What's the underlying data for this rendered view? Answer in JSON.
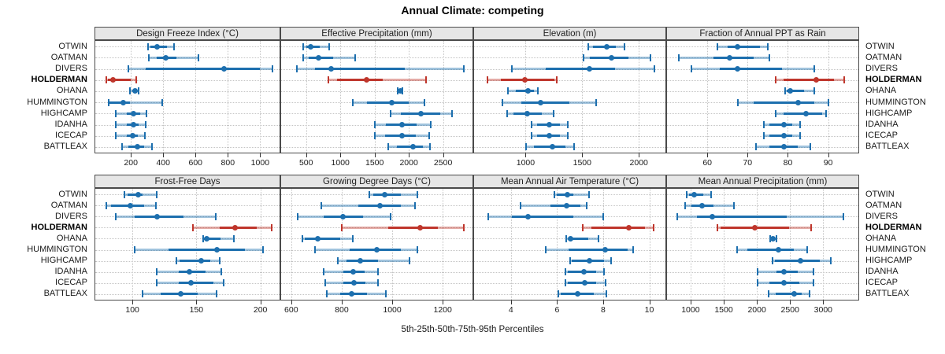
{
  "title": "Annual Climate: competing",
  "caption": "5th-25th-50th-75th-95th Percentiles",
  "colors": {
    "normal": "#1d6fae",
    "highlight": "#bf362c",
    "grid": "#c4c4c4",
    "strip_bg": "#e6e6e6",
    "panel_border": "#4a4a4a"
  },
  "chart_data": {
    "type": "dotplot-percentile-intervals",
    "percentiles": [
      5,
      25,
      50,
      75,
      95
    ],
    "legend_note": "dot = 50th percentile, thick solid = 25th-75th, light band with end caps = 5th-95th",
    "stations": [
      "OTWIN",
      "OATMAN",
      "DIVERS",
      "HOLDERMAN",
      "OHANA",
      "HUMMINGTON",
      "HIGHCAMP",
      "IDANHA",
      "ICECAP",
      "BATTLEAX"
    ],
    "highlight_station": "HOLDERMAN",
    "panels": [
      {
        "label": "Design Freeze Index (°C)",
        "row": 0,
        "col": 0,
        "xlim": [
          -20,
          1120
        ],
        "ticks": [
          200,
          400,
          600,
          800,
          1000
        ],
        "series": [
          [
            305,
            320,
            360,
            425,
            465
          ],
          [
            312,
            360,
            417,
            480,
            618
          ],
          [
            185,
            290,
            775,
            1000,
            1075
          ],
          [
            48,
            60,
            90,
            200,
            232
          ],
          [
            195,
            210,
            225,
            240,
            250
          ],
          [
            65,
            70,
            152,
            192,
            395
          ],
          [
            105,
            176,
            216,
            256,
            296
          ],
          [
            105,
            175,
            215,
            250,
            290
          ],
          [
            105,
            175,
            213,
            245,
            285
          ],
          [
            145,
            185,
            240,
            280,
            330
          ]
        ]
      },
      {
        "label": "Effective Precipitation (mm)",
        "row": 0,
        "col": 1,
        "xlim": [
          135,
          2930
        ],
        "ticks": [
          500,
          1000,
          1500,
          2000,
          2500
        ],
        "series": [
          [
            455,
            500,
            570,
            700,
            840
          ],
          [
            455,
            535,
            680,
            900,
            1220
          ],
          [
            365,
            630,
            865,
            1940,
            2800
          ],
          [
            820,
            950,
            1380,
            1620,
            2250
          ],
          [
            1840,
            1855,
            1875,
            1895,
            1910
          ],
          [
            1180,
            1390,
            1750,
            2000,
            2230
          ],
          [
            1730,
            1885,
            2180,
            2460,
            2630
          ],
          [
            1500,
            1660,
            1905,
            2115,
            2325
          ],
          [
            1500,
            1650,
            1900,
            2100,
            2300
          ],
          [
            1695,
            1830,
            2060,
            2210,
            2305
          ]
        ]
      },
      {
        "label": "Elevation (m)",
        "row": 0,
        "col": 2,
        "xlim": [
          545,
          2235
        ],
        "ticks": [
          1000,
          1500,
          2000
        ],
        "series": [
          [
            1550,
            1595,
            1715,
            1800,
            1870
          ],
          [
            1515,
            1570,
            1760,
            1905,
            2100
          ],
          [
            880,
            1180,
            1565,
            1790,
            2135
          ],
          [
            665,
            780,
            995,
            1255,
            1275
          ],
          [
            845,
            915,
            1020,
            1075,
            1105
          ],
          [
            795,
            960,
            1135,
            1385,
            1625
          ],
          [
            840,
            890,
            1015,
            1145,
            1250
          ],
          [
            1050,
            1100,
            1210,
            1305,
            1375
          ],
          [
            1050,
            1100,
            1210,
            1300,
            1370
          ],
          [
            1005,
            1075,
            1235,
            1350,
            1430
          ]
        ]
      },
      {
        "label": "Fraction of Annual PPT as Rain",
        "row": 0,
        "col": 3,
        "xlim": [
          50,
          97.5
        ],
        "ticks": [
          60,
          70,
          80,
          90
        ],
        "series": [
          [
            62.5,
            65,
            67.5,
            73,
            75
          ],
          [
            53,
            61.5,
            65.5,
            71.5,
            75.5
          ],
          [
            56,
            63,
            67.5,
            78.5,
            86.5
          ],
          [
            77,
            79,
            87,
            91.5,
            94
          ],
          [
            79.3,
            79.8,
            80.5,
            84,
            86.5
          ],
          [
            67.5,
            71.5,
            82.5,
            86.5,
            90
          ],
          [
            77,
            79,
            84.5,
            88.5,
            89.5
          ],
          [
            74,
            75.5,
            79,
            81,
            83
          ],
          [
            74,
            75.5,
            79,
            81,
            83
          ],
          [
            72,
            75.5,
            79,
            82.5,
            85.5
          ]
        ]
      },
      {
        "label": "Frost-Free Days",
        "row": 1,
        "col": 0,
        "xlim": [
          71,
          215
        ],
        "ticks": [
          100,
          150,
          200
        ],
        "series": [
          [
            94,
            96,
            104.5,
            108,
            119
          ],
          [
            79.5,
            83,
            98.5,
            109,
            118.5
          ],
          [
            87,
            102,
            119,
            140,
            165
          ],
          [
            147,
            168,
            180,
            197,
            209
          ],
          [
            155,
            156,
            158,
            169,
            179.5
          ],
          [
            102,
            128,
            166,
            188,
            202
          ],
          [
            134.5,
            137,
            153.5,
            161,
            168.5
          ],
          [
            119,
            136,
            144.5,
            157,
            169.5
          ],
          [
            119,
            136,
            146,
            163,
            171
          ],
          [
            108,
            122,
            138,
            151,
            166
          ]
        ]
      },
      {
        "label": "Growing Degree Days (°C)",
        "row": 1,
        "col": 1,
        "xlim": [
          560,
          1318
        ],
        "ticks": [
          600,
          800,
          1000,
          1200
        ],
        "series": [
          [
            910,
            925,
            970,
            1035,
            1100
          ],
          [
            720,
            865,
            950,
            1035,
            1090
          ],
          [
            625,
            730,
            805,
            885,
            995
          ],
          [
            800,
            985,
            1110,
            1180,
            1285
          ],
          [
            645,
            655,
            705,
            795,
            845
          ],
          [
            695,
            830,
            940,
            1035,
            1100
          ],
          [
            785,
            820,
            875,
            945,
            1070
          ],
          [
            730,
            805,
            845,
            890,
            945
          ],
          [
            735,
            805,
            850,
            895,
            945
          ],
          [
            740,
            795,
            840,
            900,
            975
          ]
        ]
      },
      {
        "label": "Mean Annual Air Temperature (°C)",
        "row": 1,
        "col": 2,
        "xlim": [
          2.4,
          10.7
        ],
        "ticks": [
          4,
          6,
          8,
          10
        ],
        "series": [
          [
            5.9,
            6.0,
            6.45,
            6.7,
            7.4
          ],
          [
            4.4,
            5.7,
            6.4,
            7.0,
            7.3
          ],
          [
            3.0,
            4.05,
            4.75,
            6.7,
            8.0
          ],
          [
            7.1,
            7.5,
            9.1,
            9.8,
            10.2
          ],
          [
            6.4,
            6.5,
            6.6,
            7.35,
            7.8
          ],
          [
            5.5,
            6.5,
            8.1,
            9.05,
            9.3
          ],
          [
            6.55,
            6.65,
            7.4,
            8.05,
            8.35
          ],
          [
            6.35,
            6.45,
            7.15,
            7.7,
            8.05
          ],
          [
            6.35,
            6.45,
            7.2,
            7.7,
            8.1
          ],
          [
            6.05,
            6.15,
            6.9,
            7.6,
            8.15
          ]
        ]
      },
      {
        "label": "Mean Annual Precipitation (mm)",
        "row": 1,
        "col": 3,
        "xlim": [
          645,
          3530
        ],
        "ticks": [
          1000,
          1500,
          2000,
          2500,
          3000
        ],
        "series": [
          [
            945,
            980,
            1050,
            1195,
            1315
          ],
          [
            920,
            1010,
            1170,
            1345,
            1650
          ],
          [
            805,
            1100,
            1325,
            2450,
            3300
          ],
          [
            1400,
            1450,
            1970,
            2480,
            2820
          ],
          [
            2200,
            2220,
            2245,
            2270,
            2290
          ],
          [
            1700,
            1855,
            2320,
            2560,
            2755
          ],
          [
            2240,
            2270,
            2660,
            2950,
            3115
          ],
          [
            2005,
            2290,
            2405,
            2620,
            2855
          ],
          [
            2005,
            2190,
            2405,
            2640,
            2855
          ],
          [
            2175,
            2285,
            2560,
            2680,
            2790
          ]
        ]
      }
    ]
  }
}
